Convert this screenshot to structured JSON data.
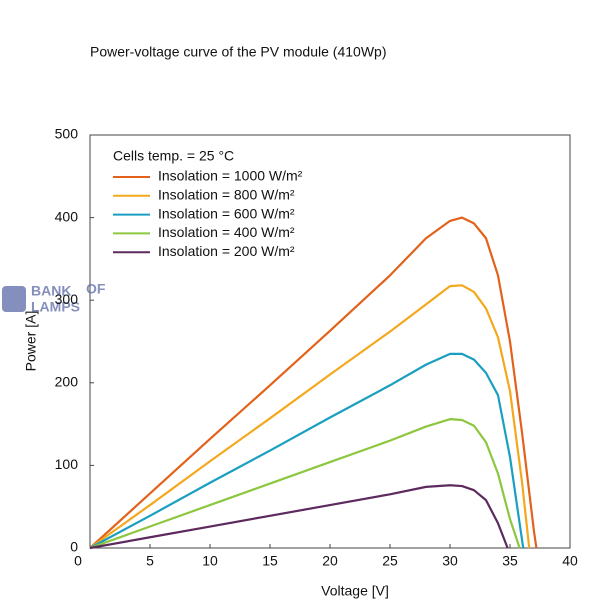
{
  "chart_data": {
    "type": "line",
    "title": "Power-voltage curve of the PV module (410Wp)",
    "x_label": "Voltage [V]",
    "y_label": "Power [A]",
    "legend_title": "Cells temp. = 25 °C",
    "watermark": [
      "BANK",
      "OF",
      "LAMPS"
    ],
    "xlim": [
      0,
      40
    ],
    "xticks": [
      0,
      5,
      10,
      15,
      20,
      25,
      30,
      35,
      40
    ],
    "ylim": [
      0,
      500
    ],
    "yticks": [
      0,
      100,
      200,
      300,
      400,
      500
    ],
    "grid": false,
    "legend": "upper-left",
    "series": [
      {
        "name": "Insolation = 1000 W/m²",
        "color": "#e2621b",
        "x": [
          0,
          5,
          10,
          15,
          20,
          25,
          28,
          30,
          31,
          32,
          33,
          34,
          35,
          36,
          37,
          37.2
        ],
        "values": [
          0,
          66,
          132,
          197,
          263,
          330,
          375,
          396,
          400,
          393,
          375,
          330,
          250,
          140,
          20,
          0
        ]
      },
      {
        "name": "Insolation = 800 W/m²",
        "color": "#f4a81d",
        "x": [
          0,
          5,
          10,
          15,
          20,
          25,
          28,
          30,
          31,
          32,
          33,
          34,
          35,
          36,
          36.6
        ],
        "values": [
          0,
          52,
          105,
          157,
          210,
          262,
          295,
          317,
          318,
          310,
          290,
          255,
          190,
          80,
          0
        ]
      },
      {
        "name": "Insolation = 600 W/m²",
        "color": "#1a9fc0",
        "x": [
          0,
          5,
          10,
          15,
          20,
          25,
          28,
          30,
          31,
          32,
          33,
          34,
          35,
          36.1
        ],
        "values": [
          0,
          39,
          79,
          118,
          158,
          197,
          222,
          235,
          235,
          228,
          212,
          185,
          110,
          0
        ]
      },
      {
        "name": "Insolation = 400 W/m²",
        "color": "#8dc63f",
        "x": [
          0,
          5,
          10,
          15,
          20,
          25,
          28,
          30,
          31,
          32,
          33,
          34,
          35,
          35.8
        ],
        "values": [
          0,
          26,
          52,
          78,
          104,
          130,
          147,
          156,
          155,
          148,
          128,
          90,
          35,
          0
        ]
      },
      {
        "name": "Insolation = 200 W/m²",
        "color": "#5c2a5e",
        "x": [
          0,
          5,
          10,
          15,
          20,
          25,
          28,
          30,
          31,
          32,
          33,
          34,
          34.8
        ],
        "values": [
          0,
          13,
          26,
          39,
          52,
          65,
          74,
          76,
          75,
          70,
          58,
          30,
          0
        ]
      }
    ]
  }
}
